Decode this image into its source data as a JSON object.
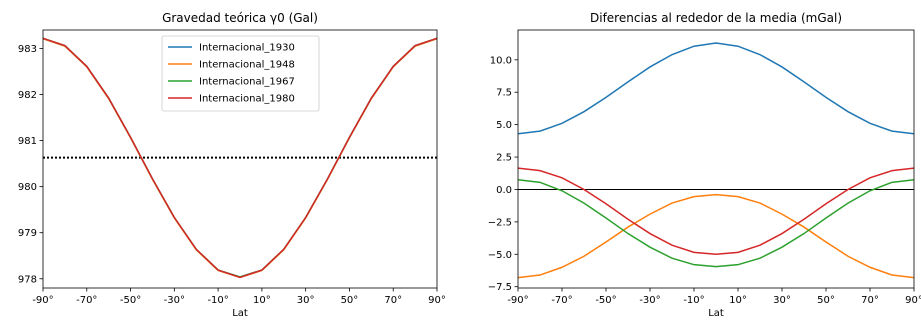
{
  "chart_data": [
    {
      "type": "line",
      "title": "Gravedad teórica γ0 (Gal)",
      "xlabel": "Lat",
      "ylabel": "",
      "xlim": [
        -90,
        90
      ],
      "ylim": [
        977.8,
        983.4
      ],
      "x_ticks": [
        -90,
        -70,
        -50,
        -30,
        -10,
        10,
        30,
        50,
        70,
        90
      ],
      "x_tick_labels": [
        "-90°",
        "-70°",
        "-50°",
        "-30°",
        "-10°",
        "10°",
        "30°",
        "50°",
        "70°",
        "90°"
      ],
      "y_ticks": [
        978,
        979,
        980,
        981,
        982,
        983
      ],
      "y_tick_labels": [
        "978",
        "979",
        "980",
        "981",
        "982",
        "983"
      ],
      "legend_position": "top-center",
      "reference_line": {
        "style": "dotted",
        "color": "#000000",
        "y": 980.63
      },
      "series": [
        {
          "name": "Internacional_1930",
          "color": "#1f77b4",
          "x": [
            -90,
            -80,
            -70,
            -60,
            -50,
            -40,
            -30,
            -20,
            -10,
            0,
            10,
            20,
            30,
            40,
            50,
            60,
            70,
            80,
            90
          ],
          "y": [
            983.22,
            983.06,
            982.61,
            981.92,
            981.07,
            980.17,
            979.33,
            978.64,
            978.19,
            978.04,
            978.19,
            978.64,
            979.33,
            980.17,
            981.07,
            981.92,
            982.61,
            983.06,
            983.22
          ]
        },
        {
          "name": "Internacional_1948",
          "color": "#ff7f0e",
          "x": [
            -90,
            -80,
            -70,
            -60,
            -50,
            -40,
            -30,
            -20,
            -10,
            0,
            10,
            20,
            30,
            40,
            50,
            60,
            70,
            80,
            90
          ],
          "y": [
            983.21,
            983.05,
            982.6,
            981.91,
            981.06,
            980.16,
            979.32,
            978.63,
            978.18,
            978.03,
            978.18,
            978.63,
            979.32,
            980.16,
            981.06,
            981.91,
            982.6,
            983.05,
            983.21
          ]
        },
        {
          "name": "Internacional_1967",
          "color": "#2ca02c",
          "x": [
            -90,
            -80,
            -70,
            -60,
            -50,
            -40,
            -30,
            -20,
            -10,
            0,
            10,
            20,
            30,
            40,
            50,
            60,
            70,
            80,
            90
          ],
          "y": [
            983.22,
            983.06,
            982.61,
            981.92,
            981.07,
            980.17,
            979.33,
            978.64,
            978.19,
            978.04,
            978.19,
            978.64,
            979.33,
            980.17,
            981.07,
            981.92,
            982.61,
            983.06,
            983.22
          ]
        },
        {
          "name": "Internacional_1980",
          "color": "#d62728",
          "x": [
            -90,
            -80,
            -70,
            -60,
            -50,
            -40,
            -30,
            -20,
            -10,
            0,
            10,
            20,
            30,
            40,
            50,
            60,
            70,
            80,
            90
          ],
          "y": [
            983.22,
            983.06,
            982.61,
            981.92,
            981.07,
            980.17,
            979.33,
            978.64,
            978.19,
            978.03,
            978.19,
            978.64,
            979.33,
            980.17,
            981.07,
            981.92,
            982.61,
            983.06,
            983.22
          ]
        }
      ]
    },
    {
      "type": "line",
      "title": "Diferencias al rededor de la media (mGal)",
      "xlabel": "Lat",
      "ylabel": "",
      "xlim": [
        -90,
        90
      ],
      "ylim": [
        -7.6,
        12.3
      ],
      "x_ticks": [
        -90,
        -70,
        -50,
        -30,
        -10,
        10,
        30,
        50,
        70,
        90
      ],
      "x_tick_labels": [
        "-90°",
        "-70°",
        "-50°",
        "-30°",
        "-10°",
        "10°",
        "30°",
        "50°",
        "70°",
        "90°"
      ],
      "y_ticks": [
        -7.5,
        -5.0,
        -2.5,
        0.0,
        2.5,
        5.0,
        7.5,
        10.0
      ],
      "y_tick_labels": [
        "−7.5",
        "−5.0",
        "−2.5",
        "0.0",
        "2.5",
        "5.0",
        "7.5",
        "10.0"
      ],
      "reference_line": {
        "style": "solid",
        "color": "#000000",
        "y": 0
      },
      "series": [
        {
          "name": "Internacional_1930",
          "color": "#1f77b4",
          "x": [
            -90,
            -80,
            -70,
            -60,
            -50,
            -40,
            -30,
            -20,
            -10,
            0,
            10,
            20,
            30,
            40,
            50,
            60,
            70,
            80,
            90
          ],
          "y": [
            4.3,
            4.5,
            5.1,
            6.0,
            7.1,
            8.3,
            9.45,
            10.4,
            11.05,
            11.3,
            11.05,
            10.4,
            9.45,
            8.3,
            7.1,
            6.0,
            5.1,
            4.5,
            4.3
          ]
        },
        {
          "name": "Internacional_1948",
          "color": "#ff7f0e",
          "x": [
            -90,
            -80,
            -70,
            -60,
            -50,
            -40,
            -30,
            -20,
            -10,
            0,
            10,
            20,
            30,
            40,
            50,
            60,
            70,
            80,
            90
          ],
          "y": [
            -6.8,
            -6.6,
            -6.0,
            -5.15,
            -4.05,
            -2.9,
            -1.9,
            -1.05,
            -0.55,
            -0.4,
            -0.55,
            -1.05,
            -1.9,
            -2.9,
            -4.05,
            -5.15,
            -6.0,
            -6.6,
            -6.8
          ]
        },
        {
          "name": "Internacional_1967",
          "color": "#2ca02c",
          "x": [
            -90,
            -80,
            -70,
            -60,
            -50,
            -40,
            -30,
            -20,
            -10,
            0,
            10,
            20,
            30,
            40,
            50,
            60,
            70,
            80,
            90
          ],
          "y": [
            0.75,
            0.55,
            -0.1,
            -1.05,
            -2.2,
            -3.4,
            -4.45,
            -5.3,
            -5.8,
            -5.95,
            -5.8,
            -5.3,
            -4.45,
            -3.4,
            -2.2,
            -1.05,
            -0.1,
            0.55,
            0.75
          ]
        },
        {
          "name": "Internacional_1980",
          "color": "#d62728",
          "x": [
            -90,
            -80,
            -70,
            -60,
            -50,
            -40,
            -30,
            -20,
            -10,
            0,
            10,
            20,
            30,
            40,
            50,
            60,
            70,
            80,
            90
          ],
          "y": [
            1.65,
            1.45,
            0.9,
            0.0,
            -1.1,
            -2.3,
            -3.4,
            -4.3,
            -4.85,
            -5.0,
            -4.85,
            -4.3,
            -3.4,
            -2.3,
            -1.1,
            0.0,
            0.9,
            1.45,
            1.65
          ]
        }
      ]
    }
  ]
}
